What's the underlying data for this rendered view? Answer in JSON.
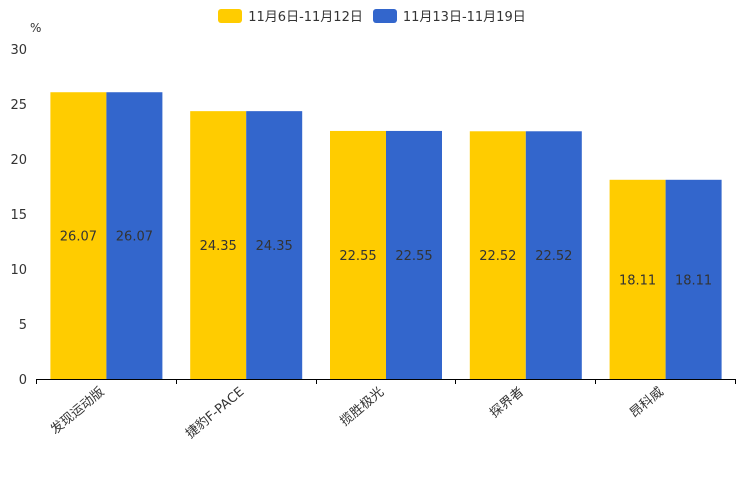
{
  "chart_data": {
    "type": "bar",
    "unit_label": "%",
    "categories": [
      "发现运动版",
      "捷豹F-PACE",
      "揽胜极光",
      "探界者",
      "昂科威"
    ],
    "series": [
      {
        "name": "11月6日-11月12日",
        "color": "#FFCC00",
        "values": [
          26.07,
          24.35,
          22.55,
          22.52,
          18.11
        ]
      },
      {
        "name": "11月13日-11月19日",
        "color": "#3366CC",
        "values": [
          26.07,
          24.35,
          22.55,
          22.52,
          18.11
        ]
      }
    ],
    "ylim": [
      0,
      30
    ],
    "yticks": [
      0,
      5,
      10,
      15,
      20,
      25,
      30
    ],
    "legend_position": "top-center",
    "grid": false
  }
}
